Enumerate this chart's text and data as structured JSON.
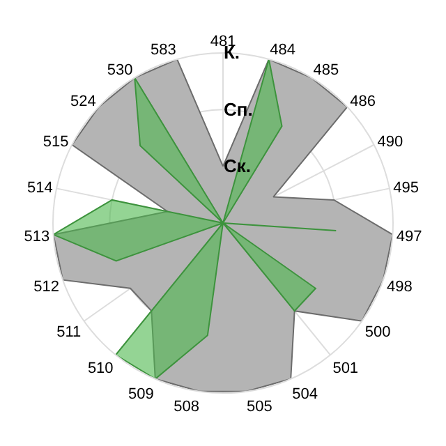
{
  "chart_data": {
    "type": "radar",
    "categories": [
      "481",
      "484",
      "485",
      "486",
      "490",
      "495",
      "497",
      "498",
      "500",
      "501",
      "504",
      "505",
      "508",
      "509",
      "510",
      "511",
      "512",
      "513",
      "514",
      "515",
      "524",
      "530",
      "583"
    ],
    "series": [
      {
        "color": "#b4b4b4",
        "values": [
          1,
          3,
          3,
          3,
          1,
          2,
          3,
          3,
          3,
          2,
          3,
          3,
          3,
          3,
          2,
          2,
          3,
          3,
          1,
          3,
          3,
          3,
          3
        ]
      },
      {
        "color": "#4cb84c",
        "values": [
          0,
          3,
          2,
          0,
          0,
          0,
          2,
          0,
          2,
          2,
          0,
          0,
          2,
          3,
          3,
          0,
          2,
          3,
          2,
          0,
          2,
          3,
          0
        ]
      }
    ],
    "ylim": [
      0,
      3
    ],
    "yticks": [
      {
        "value": 1,
        "label": "Ск."
      },
      {
        "value": 2,
        "label": "Сп."
      },
      {
        "value": 3,
        "label": "К."
      }
    ],
    "grid": true,
    "marker": "none"
  }
}
